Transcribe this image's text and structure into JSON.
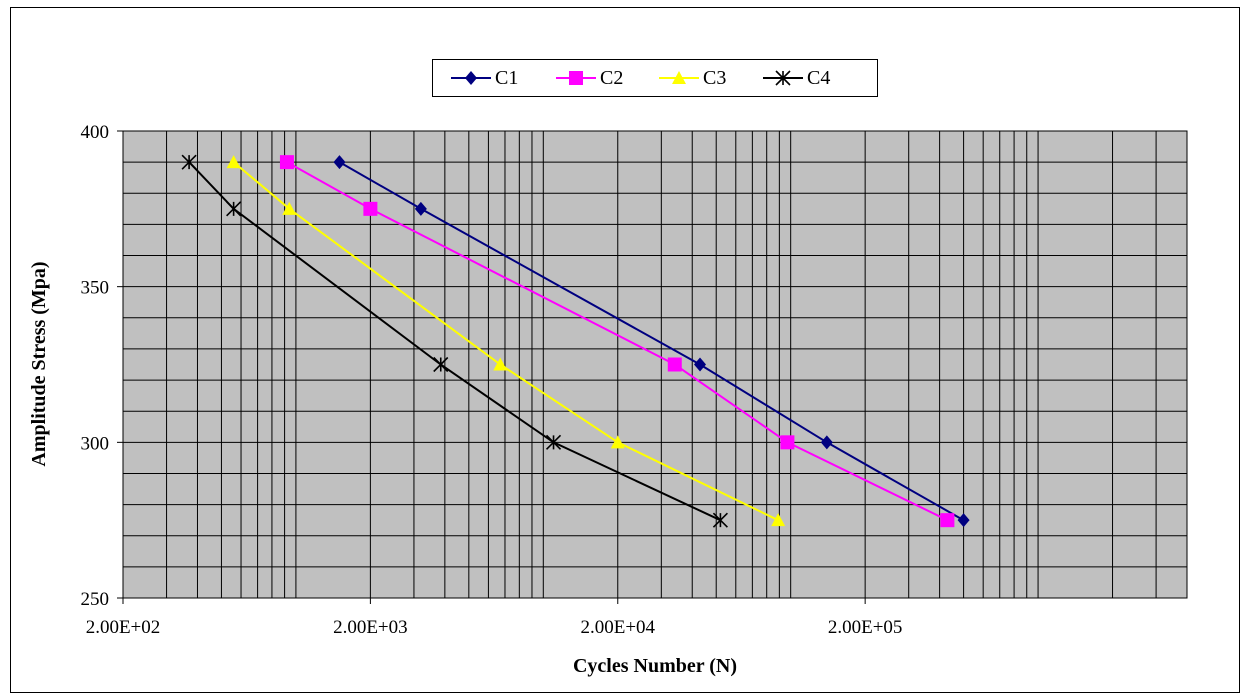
{
  "chart_data": {
    "type": "line",
    "xlabel": "Cycles Number (N)",
    "ylabel": "Amplitude Stress (Mpa)",
    "xscale": "log",
    "xlim": [
      200,
      4000000
    ],
    "ylim": [
      250,
      400
    ],
    "xticks": [
      "2.00E+02",
      "2.00E+03",
      "2.00E+04",
      "2.00E+05"
    ],
    "yticks": [
      "250",
      "300",
      "350",
      "400"
    ],
    "grid": true,
    "legend_position": "top",
    "series": [
      {
        "name": "C1",
        "color": "#000080",
        "marker": "diamond",
        "points": [
          [
            1500,
            390
          ],
          [
            3200,
            375
          ],
          [
            43000,
            325
          ],
          [
            140000,
            300
          ],
          [
            500000,
            275
          ]
        ]
      },
      {
        "name": "C2",
        "color": "#FF00FF",
        "marker": "square",
        "points": [
          [
            920,
            390
          ],
          [
            2000,
            375
          ],
          [
            34000,
            325
          ],
          [
            97000,
            300
          ],
          [
            430000,
            275
          ]
        ]
      },
      {
        "name": "C3",
        "color": "#FFFF00",
        "marker": "triangle",
        "points": [
          [
            560,
            390
          ],
          [
            940,
            375
          ],
          [
            6700,
            325
          ],
          [
            20000,
            300
          ],
          [
            89000,
            275
          ]
        ]
      },
      {
        "name": "C4",
        "color": "#000000",
        "marker": "star",
        "points": [
          [
            370,
            390
          ],
          [
            560,
            375
          ],
          [
            3850,
            325
          ],
          [
            11000,
            300
          ],
          [
            52000,
            275
          ]
        ]
      }
    ]
  }
}
